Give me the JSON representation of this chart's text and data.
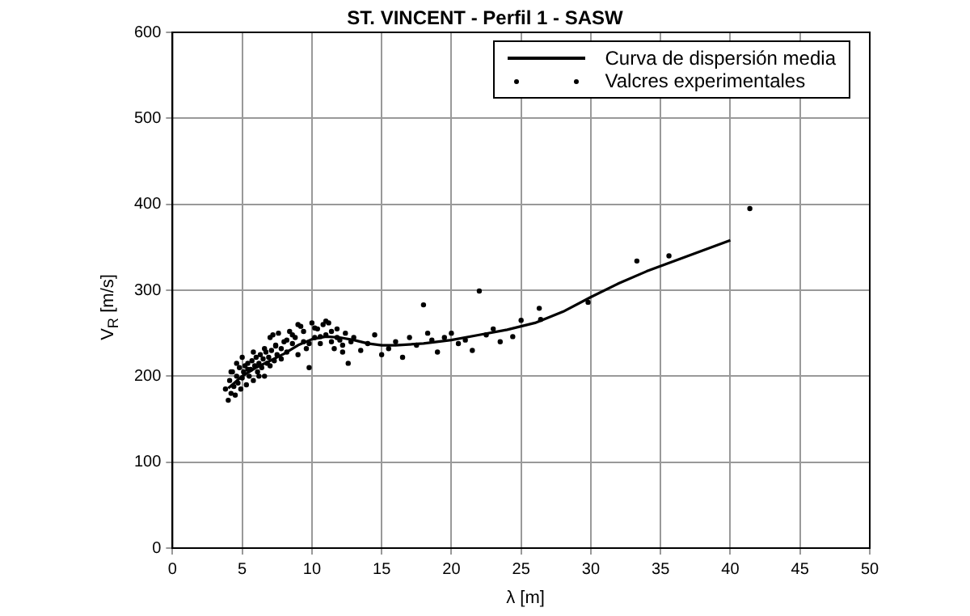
{
  "chart_data": {
    "type": "scatter",
    "title": "ST. VINCENT - Perfil 1 - SASW",
    "xlabel": "λ [m]",
    "ylabel": "V$_{R}$ [m/s]",
    "xlim": [
      0,
      50
    ],
    "ylim": [
      0,
      600
    ],
    "xticks": [
      0,
      5,
      10,
      15,
      20,
      25,
      30,
      35,
      40,
      45,
      50
    ],
    "yticks": [
      0,
      100,
      200,
      300,
      400,
      500,
      600
    ],
    "grid": true,
    "legend": "top right",
    "series": [
      {
        "name": "Curva de dispersión media",
        "type": "line",
        "color": "#000000",
        "marker": "none",
        "x": [
          4,
          5,
          6,
          7,
          8,
          9,
          10,
          11,
          12,
          13,
          14,
          15,
          16,
          18,
          20,
          22,
          24,
          26,
          28,
          30,
          32,
          34,
          36,
          38,
          40
        ],
        "values": [
          186,
          200,
          210,
          218,
          226,
          236,
          243,
          246,
          245,
          242,
          238,
          236,
          236,
          238,
          242,
          248,
          254,
          262,
          275,
          292,
          308,
          322,
          334,
          346,
          358
        ]
      },
      {
        "name": "Valcres experimentales",
        "type": "scatter",
        "color": "#000000",
        "marker": "circle",
        "x": [
          3.8,
          4,
          4.1,
          4.2,
          4.3,
          4.4,
          4.5,
          4.6,
          4.7,
          4.8,
          4.9,
          5,
          5.1,
          5.2,
          5.3,
          5.4,
          5.5,
          5.6,
          5.7,
          5.8,
          5.9,
          6,
          6.1,
          6.2,
          6.3,
          6.4,
          6.5,
          6.6,
          6.7,
          6.8,
          6.9,
          7,
          7.1,
          7.2,
          7.3,
          7.4,
          7.5,
          7.6,
          7.8,
          8,
          8.2,
          8.4,
          8.6,
          8.8,
          9,
          9.2,
          9.4,
          9.6,
          9.8,
          10,
          10.2,
          10.4,
          10.6,
          10.8,
          11,
          11.2,
          11.4,
          11.6,
          11.8,
          12,
          12.2,
          12.4,
          12.6,
          12.8,
          13,
          13.5,
          14,
          14.5,
          15,
          15.5,
          16,
          16.5,
          17,
          17.5,
          18,
          18.3,
          18.6,
          19,
          19.5,
          20,
          20.5,
          21,
          21.5,
          22,
          22.5,
          23,
          23.5,
          24.4,
          25,
          26.3,
          26.4,
          29.8,
          33.3,
          35.6,
          41.4,
          4.2,
          4.6,
          5,
          5.4,
          5.8,
          6.2,
          6.6,
          7,
          7.4,
          7.8,
          8.2,
          8.6,
          9,
          9.4,
          9.8,
          10.2,
          10.6,
          11,
          11.4,
          11.8,
          12.2
        ],
        "values": [
          185,
          172,
          195,
          180,
          205,
          188,
          178,
          200,
          192,
          210,
          185,
          198,
          205,
          212,
          190,
          215,
          200,
          208,
          218,
          195,
          212,
          222,
          205,
          215,
          225,
          210,
          220,
          200,
          228,
          215,
          222,
          245,
          230,
          248,
          218,
          235,
          225,
          250,
          232,
          240,
          228,
          252,
          238,
          245,
          225,
          258,
          240,
          232,
          210,
          262,
          245,
          255,
          238,
          260,
          248,
          262,
          240,
          232,
          255,
          242,
          228,
          250,
          215,
          240,
          245,
          230,
          238,
          248,
          225,
          232,
          240,
          222,
          245,
          236,
          283,
          250,
          242,
          228,
          245,
          250,
          238,
          242,
          230,
          299,
          248,
          255,
          240,
          246,
          265,
          279,
          266,
          286,
          334,
          340,
          395,
          205,
          215,
          222,
          208,
          228,
          200,
          232,
          212,
          236,
          220,
          242,
          248,
          260,
          252,
          238,
          256,
          246,
          264,
          252,
          245,
          236
        ]
      }
    ]
  }
}
